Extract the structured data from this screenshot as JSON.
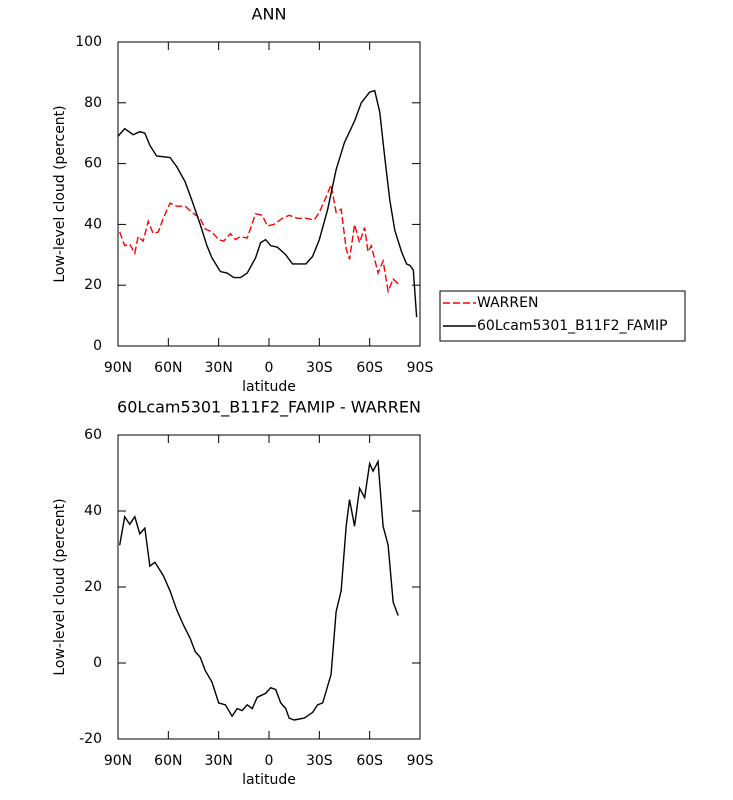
{
  "chart_data": [
    {
      "type": "line",
      "title": "ANN",
      "xlabel": "latitude",
      "ylabel": "Low-level cloud (percent)",
      "xlim": [
        90,
        -90
      ],
      "xticks": [
        {
          "value": 90,
          "label": "90N"
        },
        {
          "value": 60,
          "label": "60N"
        },
        {
          "value": 30,
          "label": "30N"
        },
        0,
        {
          "value": -30,
          "label": "30S"
        },
        {
          "value": -60,
          "label": "60S"
        },
        {
          "value": -90,
          "label": "90S"
        }
      ],
      "ylim": [
        0,
        100
      ],
      "yticks": [
        0,
        20,
        40,
        60,
        80,
        100
      ],
      "legend": "right",
      "series": [
        {
          "name": "WARREN",
          "color": "#ff0000",
          "line_style": "dashed",
          "x": [
            89,
            86,
            83,
            80,
            78,
            75,
            72,
            69,
            66,
            63,
            59,
            55,
            50,
            46,
            41,
            38,
            34,
            30,
            27,
            23,
            20,
            17,
            13,
            8,
            4,
            1,
            -3,
            -8,
            -12,
            -17,
            -22,
            -27,
            -30,
            -34,
            -37,
            -40,
            -43,
            -46,
            -48,
            -51,
            -54,
            -57,
            -59,
            -61,
            -65,
            -68,
            -71,
            -74,
            -77
          ],
          "values": [
            37.5,
            33,
            33.5,
            30.5,
            36,
            34.5,
            41,
            37,
            37.5,
            42,
            47,
            46,
            46,
            44,
            42,
            38.5,
            37.5,
            35,
            34.5,
            37,
            35,
            36,
            35.5,
            43.5,
            43,
            39.5,
            40,
            42,
            43,
            42,
            42,
            41.5,
            44,
            49,
            53,
            44,
            45,
            32,
            28.5,
            40,
            34,
            39,
            31,
            33,
            24,
            28,
            18,
            22,
            20.5
          ]
        },
        {
          "name": "60Lcam5301_B11F2_FAMIP",
          "color": "#000000",
          "line_style": "solid",
          "x": [
            90,
            86,
            81,
            77,
            74,
            71,
            67,
            59,
            55,
            50,
            46,
            41,
            37,
            34,
            29,
            25,
            21,
            17,
            13,
            8,
            5,
            2,
            -1,
            -5,
            -10,
            -14,
            -18,
            -22,
            -26,
            -30,
            -35,
            -40,
            -45,
            -51,
            -55,
            -60,
            -63,
            -66,
            -69,
            -72,
            -75,
            -79,
            -82,
            -84,
            -86,
            -88
          ],
          "values": [
            69,
            71.5,
            69.5,
            70.5,
            70,
            66,
            62.5,
            62,
            59,
            54,
            48,
            40,
            33,
            29,
            24.5,
            24,
            22.5,
            22.5,
            24,
            29,
            34,
            35,
            33,
            32.5,
            30,
            27,
            27,
            27,
            29.5,
            35,
            45,
            58,
            67,
            74,
            80,
            83.5,
            84,
            77,
            62,
            48,
            38,
            31,
            27,
            26.5,
            25,
            9.5
          ]
        }
      ]
    },
    {
      "type": "line",
      "title": "60Lcam5301_B11F2_FAMIP - WARREN",
      "xlabel": "latitude",
      "ylabel": "Low-level cloud (percent)",
      "xlim": [
        90,
        -90
      ],
      "xticks": [
        {
          "value": 90,
          "label": "90N"
        },
        {
          "value": 60,
          "label": "60N"
        },
        {
          "value": 30,
          "label": "30N"
        },
        0,
        {
          "value": -30,
          "label": "30S"
        },
        {
          "value": -60,
          "label": "60S"
        },
        {
          "value": -90,
          "label": "90S"
        }
      ],
      "ylim": [
        -20,
        60
      ],
      "yticks": [
        -20,
        0,
        20,
        40,
        60
      ],
      "series": [
        {
          "color": "#000000",
          "line_style": "solid",
          "x": [
            89,
            86,
            83,
            80,
            77,
            74,
            71,
            68,
            63,
            59,
            55,
            51,
            47,
            44,
            41,
            38,
            34,
            30,
            26,
            22,
            19,
            16,
            13,
            10,
            7,
            2,
            -1,
            -4,
            -7,
            -10,
            -12,
            -15,
            -21,
            -26,
            -29,
            -32,
            -37,
            -40,
            -43,
            -46,
            -48,
            -51,
            -54,
            -57,
            -60,
            -62,
            -65,
            -68,
            -71,
            -74,
            -77
          ],
          "values": [
            31,
            38.5,
            36.5,
            38.5,
            34,
            35.5,
            25.5,
            26.5,
            23,
            19,
            14,
            10,
            6.5,
            3,
            1.5,
            -2,
            -5,
            -10.5,
            -11,
            -14,
            -12,
            -12.5,
            -11,
            -12,
            -9,
            -8,
            -6.5,
            -7,
            -10.5,
            -12,
            -14.5,
            -15,
            -14.5,
            -13,
            -11,
            -10.5,
            -3,
            13.5,
            19,
            36,
            43,
            36,
            46,
            43.5,
            52.5,
            50.5,
            53,
            36,
            31,
            16,
            12.5
          ]
        }
      ]
    }
  ]
}
